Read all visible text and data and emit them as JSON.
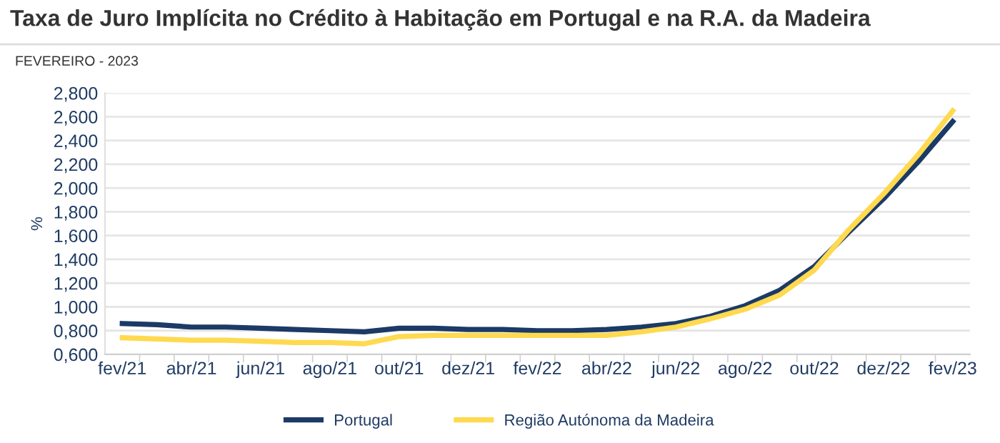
{
  "chart_data": {
    "type": "line",
    "title": "Taxa de Juro Implícita no Crédito à Habitação em Portugal e na R.A. da Madeira",
    "subtitle": "FEVEREIRO - 2023",
    "ylabel": "%",
    "categories": [
      "fev/21",
      null,
      "abr/21",
      null,
      "jun/21",
      null,
      "ago/21",
      null,
      "out/21",
      null,
      "dez/21",
      null,
      "fev/22",
      null,
      "abr/22",
      null,
      "jun/22",
      null,
      "ago/22",
      null,
      "out/22",
      null,
      "dez/22",
      null,
      "fev/23"
    ],
    "series": [
      {
        "name": "Portugal",
        "color": "#1b3a66",
        "values": [
          0.86,
          0.85,
          0.83,
          0.83,
          0.82,
          0.81,
          0.8,
          0.79,
          0.82,
          0.82,
          0.81,
          0.81,
          0.8,
          0.8,
          0.81,
          0.83,
          0.86,
          0.92,
          1.01,
          1.14,
          1.34,
          1.63,
          1.91,
          2.22,
          2.56
        ]
      },
      {
        "name": "Região Autónoma da Madeira",
        "color": "#ffd94f",
        "values": [
          0.74,
          0.73,
          0.72,
          0.72,
          0.71,
          0.7,
          0.7,
          0.69,
          0.75,
          0.76,
          0.76,
          0.76,
          0.76,
          0.76,
          0.76,
          0.79,
          0.83,
          0.9,
          0.98,
          1.1,
          1.31,
          1.65,
          1.95,
          2.28,
          2.65
        ]
      }
    ],
    "ylim": [
      0.6,
      2.8
    ],
    "yticks": [
      {
        "value": 0.6,
        "label": "0,600"
      },
      {
        "value": 0.8,
        "label": "0,800"
      },
      {
        "value": 1.0,
        "label": "1,000"
      },
      {
        "value": 1.2,
        "label": "1,200"
      },
      {
        "value": 1.4,
        "label": "1,400"
      },
      {
        "value": 1.6,
        "label": "1,600"
      },
      {
        "value": 1.8,
        "label": "1,800"
      },
      {
        "value": 2.0,
        "label": "2,000"
      },
      {
        "value": 2.2,
        "label": "2,200"
      },
      {
        "value": 2.4,
        "label": "2,400"
      },
      {
        "value": 2.6,
        "label": "2,600"
      },
      {
        "value": 2.8,
        "label": "2,800"
      }
    ],
    "grid": "y",
    "legend": "bottom",
    "marker": "none",
    "line_style": "solid"
  }
}
